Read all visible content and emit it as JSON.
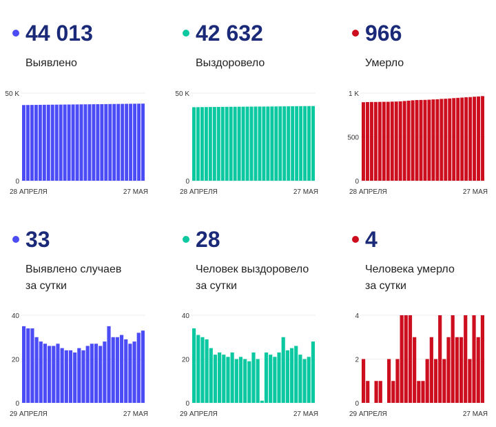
{
  "cards": [
    {
      "value": "44 013",
      "label": "Выявлено",
      "color": "#4b4cf5",
      "chart": {
        "type": "bar",
        "cumulative_final": 44013,
        "derived_from_daily_of": 3,
        "yticks": [
          "0",
          "50 K"
        ],
        "ymax": 50000,
        "x_start": "28 АПРЕЛЯ",
        "x_end": "27 МАЯ"
      }
    },
    {
      "value": "42 632",
      "label": "Выздоровело",
      "color": "#0cc8a0",
      "chart": {
        "type": "bar",
        "cumulative_final": 42632,
        "derived_from_daily_of": 4,
        "yticks": [
          "0",
          "50 K"
        ],
        "ymax": 50000,
        "x_start": "28 АПРЕЛЯ",
        "x_end": "27 МАЯ"
      }
    },
    {
      "value": "966",
      "label": "Умерло",
      "color": "#cc0e1e",
      "chart": {
        "type": "bar",
        "cumulative_final": 966,
        "derived_from_daily_of": 5,
        "yticks": [
          "0",
          "500",
          "1 K"
        ],
        "ymax": 1000,
        "x_start": "28 АПРЕЛЯ",
        "x_end": "27 МАЯ"
      }
    },
    {
      "value": "33",
      "label": "Выявлено случаев",
      "label2": "за сутки",
      "color": "#4b4cf5",
      "chart": {
        "type": "bar",
        "values": [
          35,
          34,
          34,
          30,
          28,
          27,
          26,
          26,
          27,
          25,
          24,
          24,
          23,
          25,
          24,
          26,
          27,
          27,
          26,
          28,
          35,
          30,
          30,
          31,
          29,
          27,
          28,
          32,
          33
        ],
        "yticks": [
          "0",
          "20",
          "40"
        ],
        "ymax": 40,
        "x_start": "29 АПРЕЛЯ",
        "x_end": "27 МАЯ"
      }
    },
    {
      "value": "28",
      "label": "Человек выздоровело",
      "label2": "за сутки",
      "color": "#0cc8a0",
      "chart": {
        "type": "bar",
        "values": [
          34,
          31,
          30,
          29,
          25,
          22,
          23,
          22,
          21,
          23,
          20,
          21,
          20,
          19,
          23,
          20,
          1,
          23,
          22,
          21,
          23,
          30,
          24,
          25,
          26,
          22,
          20,
          21,
          28
        ],
        "yticks": [
          "0",
          "20",
          "40"
        ],
        "ymax": 40,
        "x_start": "29 АПРЕЛЯ",
        "x_end": "27 МАЯ"
      }
    },
    {
      "value": "4",
      "label": "Человека умерло",
      "label2": "за сутки",
      "color": "#cc0e1e",
      "chart": {
        "type": "bar",
        "values": [
          2,
          1,
          0,
          1,
          1,
          0,
          2,
          1,
          2,
          4,
          4,
          4,
          3,
          1,
          1,
          2,
          3,
          2,
          4,
          2,
          3,
          4,
          3,
          3,
          4,
          2,
          4,
          3,
          4
        ],
        "yticks": [
          "0",
          "2",
          "4"
        ],
        "ymax": 4,
        "x_start": "29 АПРЕЛЯ",
        "x_end": "27 МАЯ"
      }
    }
  ]
}
